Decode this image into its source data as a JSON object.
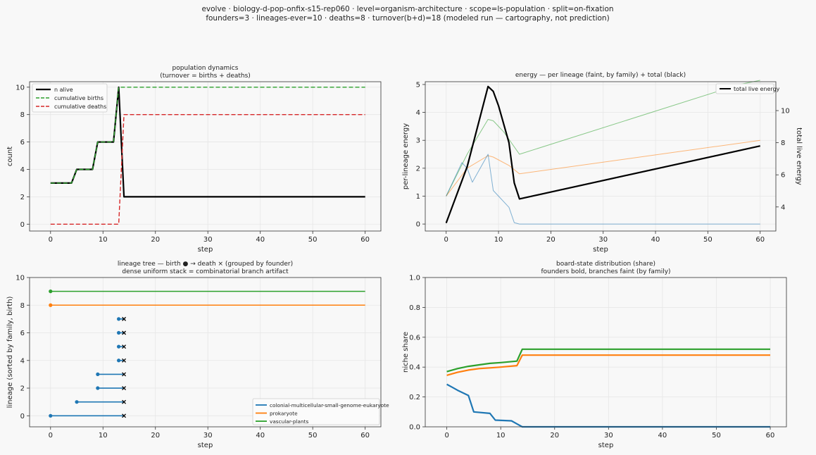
{
  "figure": {
    "title_line1": "evolve · biology-d-pop-onfix-s15-rep060 · level=organism-architecture · scope=ls-population · split=on-fixation",
    "title_line2": "founders=3 · lineages-ever=10 · deaths=8 · turnover(b+d)=18   (modeled run — cartography, not prediction)"
  },
  "colors": {
    "black": "#000000",
    "green": "#2ca02c",
    "red": "#d62728",
    "blue": "#1f77b4",
    "orange": "#ff7f0e"
  },
  "chart_data": [
    {
      "id": "population",
      "type": "line",
      "title": "population dynamics",
      "subtitle": "(turnover = births + deaths)",
      "xlabel": "step",
      "ylabel": "count",
      "xlim": [
        -4,
        63
      ],
      "ylim": [
        -0.5,
        10.4
      ],
      "xticks": [
        0,
        10,
        20,
        30,
        40,
        50,
        60
      ],
      "yticks": [
        0,
        2,
        4,
        6,
        8,
        10
      ],
      "grid": true,
      "legend": "top-left",
      "series": [
        {
          "name": "n alive",
          "color": "#000000",
          "style": "solid",
          "width": 2.2,
          "x": [
            0,
            4,
            5,
            8,
            9,
            12,
            13,
            14,
            60
          ],
          "y": [
            3,
            3,
            4,
            4,
            6,
            6,
            10,
            2,
            2
          ]
        },
        {
          "name": "cumulative births",
          "color": "#2ca02c",
          "style": "dashed",
          "width": 1.4,
          "x": [
            0,
            4,
            5,
            8,
            9,
            12,
            13,
            60
          ],
          "y": [
            3,
            3,
            4,
            4,
            6,
            6,
            10,
            10
          ]
        },
        {
          "name": "cumulative deaths",
          "color": "#d62728",
          "style": "dashed",
          "width": 1.4,
          "x": [
            0,
            13,
            14,
            60
          ],
          "y": [
            0,
            0,
            8,
            8
          ]
        }
      ]
    },
    {
      "id": "energy",
      "type": "line",
      "title": "energy — per lineage (faint, by family) + total (black)",
      "xlabel": "step",
      "ylabel": "per-lineage energy",
      "y2label": "total live energy",
      "xlim": [
        -4,
        63
      ],
      "ylim": [
        -0.25,
        5.1
      ],
      "y2lim": [
        2.5,
        11.8
      ],
      "xticks": [
        0,
        10,
        20,
        30,
        40,
        50,
        60
      ],
      "yticks": [
        0,
        1,
        2,
        3,
        4,
        5
      ],
      "y2ticks": [
        4,
        6,
        8,
        10
      ],
      "grid": true,
      "legend": "top-right",
      "series": [
        {
          "name": "",
          "color": "#2ca02c",
          "axis": "left",
          "faint": true,
          "x": [
            0,
            4,
            8,
            9,
            11,
            14,
            56,
            60
          ],
          "y": [
            1.0,
            2.5,
            3.75,
            3.7,
            3.3,
            2.5,
            5.0,
            5.15
          ]
        },
        {
          "name": "",
          "color": "#ff7f0e",
          "axis": "left",
          "faint": true,
          "x": [
            0,
            4,
            8,
            9,
            12,
            14,
            60
          ],
          "y": [
            1.0,
            2.0,
            2.45,
            2.4,
            2.1,
            1.8,
            3.0
          ]
        },
        {
          "name": "",
          "color": "#1f77b4",
          "axis": "left",
          "faint": true,
          "x": [
            0,
            3,
            4,
            5,
            8,
            9,
            10,
            12,
            13,
            14,
            60
          ],
          "y": [
            1.0,
            2.2,
            2.0,
            1.5,
            2.5,
            1.2,
            1.0,
            0.6,
            0.05,
            0,
            0
          ]
        },
        {
          "name": "total live energy",
          "color": "#000000",
          "axis": "right",
          "width": 2.2,
          "x": [
            0,
            4,
            8,
            9,
            10,
            12,
            13,
            14,
            60
          ],
          "y": [
            3.0,
            6.5,
            11.5,
            11.2,
            10.3,
            8.0,
            5.5,
            4.5,
            7.8
          ]
        }
      ]
    },
    {
      "id": "lineage-tree",
      "type": "scatter",
      "title": "lineage tree — birth ● → death ×  (grouped by founder)",
      "subtitle": "dense uniform stack = combinatorial branch artifact",
      "xlabel": "step",
      "ylabel": "lineage (sorted by family, birth)",
      "xlim": [
        -4,
        63
      ],
      "ylim": [
        -0.8,
        10
      ],
      "xticks": [
        0,
        10,
        20,
        30,
        40,
        50,
        60
      ],
      "yticks": [
        0,
        2,
        4,
        6,
        8,
        10
      ],
      "grid": true,
      "legend": "bottom-right",
      "legend_entries": [
        {
          "name": "colonial-multicellular-small-genome-eukaryote",
          "color": "#1f77b4"
        },
        {
          "name": "prokaryote",
          "color": "#ff7f0e"
        },
        {
          "name": "vascular-plants",
          "color": "#2ca02c"
        }
      ],
      "lineages": [
        {
          "y": 0,
          "birth": 0,
          "death": 14,
          "family": "colonial-multicellular-small-genome-eukaryote"
        },
        {
          "y": 1,
          "birth": 5,
          "death": 14,
          "family": "colonial-multicellular-small-genome-eukaryote"
        },
        {
          "y": 2,
          "birth": 9,
          "death": 14,
          "family": "colonial-multicellular-small-genome-eukaryote"
        },
        {
          "y": 3,
          "birth": 9,
          "death": 14,
          "family": "colonial-multicellular-small-genome-eukaryote"
        },
        {
          "y": 4,
          "birth": 13,
          "death": 14,
          "family": "colonial-multicellular-small-genome-eukaryote"
        },
        {
          "y": 5,
          "birth": 13,
          "death": 14,
          "family": "colonial-multicellular-small-genome-eukaryote"
        },
        {
          "y": 6,
          "birth": 13,
          "death": 14,
          "family": "colonial-multicellular-small-genome-eukaryote"
        },
        {
          "y": 7,
          "birth": 13,
          "death": 14,
          "family": "colonial-multicellular-small-genome-eukaryote"
        },
        {
          "y": 8,
          "birth": 0,
          "death": null,
          "end": 60,
          "family": "prokaryote"
        },
        {
          "y": 9,
          "birth": 0,
          "death": null,
          "end": 60,
          "family": "vascular-plants"
        }
      ]
    },
    {
      "id": "board-state",
      "type": "line",
      "title": "board-state distribution (share)",
      "subtitle": "founders bold, branches faint (by family)",
      "xlabel": "step",
      "ylabel": "niche share",
      "xlim": [
        -4,
        63
      ],
      "ylim": [
        0,
        1.0
      ],
      "xticks": [
        0,
        10,
        20,
        30,
        40,
        50,
        60
      ],
      "yticks": [
        0.0,
        0.2,
        0.4,
        0.6,
        0.8,
        1.0
      ],
      "grid": true,
      "series": [
        {
          "name": "",
          "color": "#2ca02c",
          "width": 2.2,
          "x": [
            0,
            2,
            4,
            6,
            8,
            10,
            13,
            14,
            60
          ],
          "y": [
            0.37,
            0.39,
            0.405,
            0.415,
            0.425,
            0.43,
            0.44,
            0.52,
            0.52
          ]
        },
        {
          "name": "",
          "color": "#ff7f0e",
          "width": 2.2,
          "x": [
            0,
            2,
            4,
            6,
            8,
            10,
            13,
            14,
            60
          ],
          "y": [
            0.345,
            0.365,
            0.38,
            0.39,
            0.395,
            0.4,
            0.41,
            0.48,
            0.48
          ]
        },
        {
          "name": "",
          "color": "#1f77b4",
          "width": 2.2,
          "x": [
            0,
            1,
            2,
            4,
            5,
            8,
            9,
            12,
            13,
            14,
            60
          ],
          "y": [
            0.285,
            0.265,
            0.245,
            0.21,
            0.1,
            0.09,
            0.045,
            0.04,
            0.02,
            0,
            0
          ]
        }
      ]
    }
  ]
}
